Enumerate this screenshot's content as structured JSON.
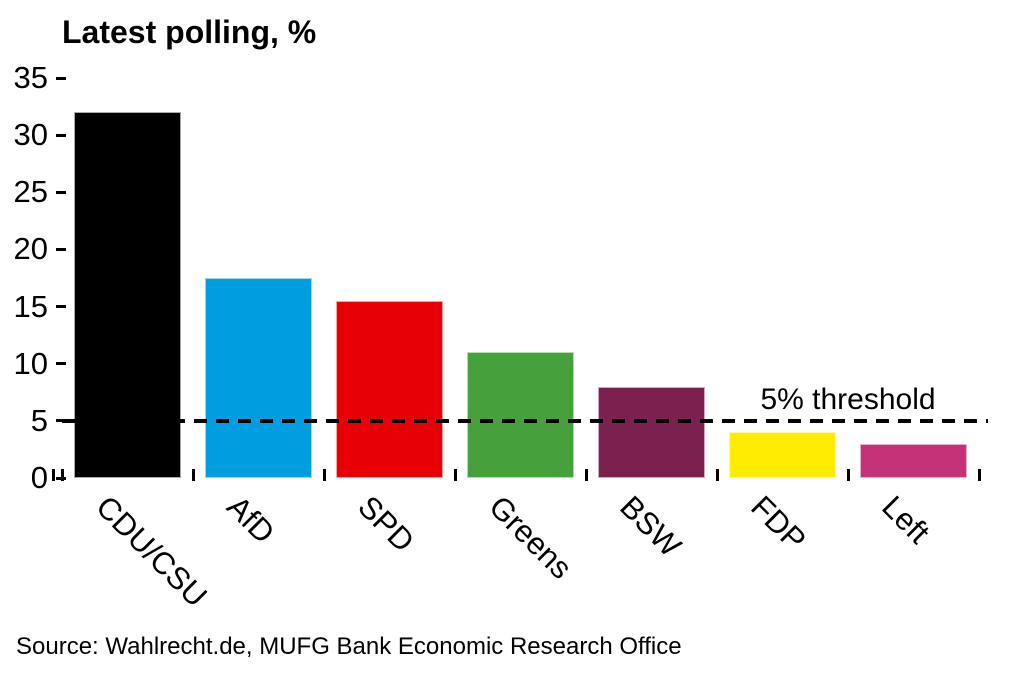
{
  "chart_data": {
    "type": "bar",
    "title": "Latest polling, %",
    "categories": [
      "CDU/CSU",
      "AfD",
      "SPD",
      "Greens",
      "BSW",
      "FDP",
      "Left"
    ],
    "values": [
      32,
      17.5,
      15.5,
      11,
      8,
      4,
      3
    ],
    "bar_colors": [
      "#000000",
      "#009EE0",
      "#E60005",
      "#46A03C",
      "#7B2150",
      "#FFEC00",
      "#C43277"
    ],
    "bar_border_colors": [
      "#aaaaaa",
      "#99D8F3",
      "#F5A3A5",
      "#B5DCAB",
      "#D3A7C0",
      "#FFF8A6",
      "#EAAFCC"
    ],
    "xlabel": "",
    "ylabel": "",
    "ylim": [
      0,
      35
    ],
    "yticks": [
      35,
      30,
      25,
      20,
      15,
      10,
      5,
      0
    ],
    "grid": false,
    "legend": null,
    "threshold": {
      "value": 5,
      "label": "5% threshold",
      "line_style": "dashed",
      "line_color": "#000000"
    }
  },
  "source_note": "Source: Wahlrecht.de, MUFG Bank Economic Research Office"
}
